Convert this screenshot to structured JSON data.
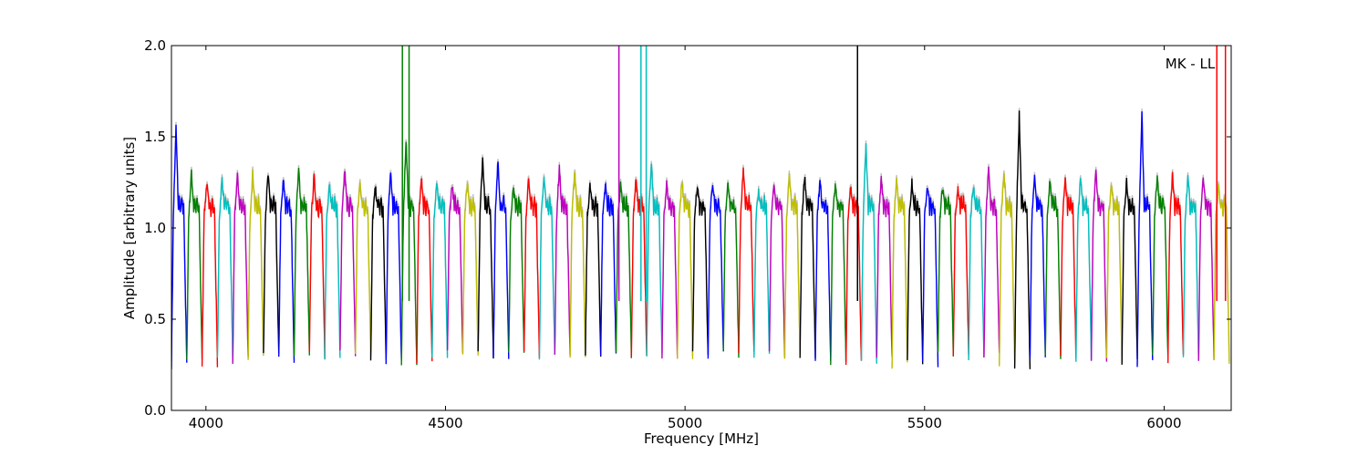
{
  "chart_data": {
    "type": "line",
    "title": "",
    "annotation": "MK - LL",
    "xlabel": "Frequency [MHz]",
    "ylabel": "Amplitude [arbitrary units]",
    "xlim": [
      3928,
      6140
    ],
    "ylim": [
      0.0,
      2.0
    ],
    "xticks": [
      4000,
      4500,
      5000,
      5500,
      6000
    ],
    "xtick_labels": [
      "4000",
      "4500",
      "5000",
      "5500",
      "6000"
    ],
    "yticks": [
      0.0,
      0.5,
      1.0,
      1.5,
      2.0
    ],
    "ytick_labels": [
      "0.0",
      "0.5",
      "1.0",
      "1.5",
      "2.0"
    ],
    "grid": false,
    "legend": "none",
    "background_series_color": "#bfbfbf",
    "color_cycle": [
      "#0000ff",
      "#008000",
      "#ff0000",
      "#00bfbf",
      "#bf00bf",
      "#bfbf00",
      "#000000"
    ],
    "band_width_mhz": 32,
    "band_count": 69,
    "band_start_mhz": 3928,
    "band_peaks": [
      1.55,
      1.3,
      1.24,
      1.27,
      1.29,
      1.3,
      1.29,
      1.26,
      1.32,
      1.28,
      1.25,
      1.32,
      1.25,
      1.22,
      1.3,
      1.49,
      1.27,
      1.26,
      1.24,
      1.25,
      1.39,
      1.37,
      1.22,
      1.28,
      1.27,
      1.33,
      1.31,
      1.23,
      1.24,
      1.23,
      1.26,
      1.36,
      1.24,
      1.25,
      1.24,
      1.25,
      1.26,
      1.32,
      1.2,
      1.23,
      1.28,
      1.29,
      1.25,
      1.23,
      1.23,
      1.46,
      1.27,
      1.26,
      1.26,
      1.24,
      1.23,
      1.22,
      1.23,
      1.33,
      1.3,
      1.63,
      1.27,
      1.26,
      1.26,
      1.27,
      1.32,
      1.24,
      1.25,
      1.63,
      1.28,
      1.3,
      1.28,
      1.28,
      1.23
    ],
    "band_dips": [
      0.25,
      0.26,
      0.26,
      0.27,
      0.27,
      0.3,
      0.29,
      0.28,
      0.29,
      0.3,
      0.3,
      0.31,
      0.3,
      0.27,
      0.25,
      0.24,
      0.25,
      0.28,
      0.31,
      0.3,
      0.3,
      0.29,
      0.3,
      0.3,
      0.3,
      0.3,
      0.28,
      0.3,
      0.3,
      0.31,
      0.29,
      0.29,
      0.3,
      0.3,
      0.3,
      0.3,
      0.31,
      0.31,
      0.3,
      0.3,
      0.3,
      0.29,
      0.26,
      0.27,
      0.25,
      0.27,
      0.28,
      0.25,
      0.26,
      0.25,
      0.3,
      0.31,
      0.29,
      0.3,
      0.25,
      0.24,
      0.27,
      0.28,
      0.28,
      0.29,
      0.27,
      0.28,
      0.27,
      0.26,
      0.28,
      0.28,
      0.27,
      0.28,
      0.27
    ],
    "spikes": [
      {
        "x": 4410,
        "color": "#008000"
      },
      {
        "x": 4424,
        "color": "#008000"
      },
      {
        "x": 4862,
        "color": "#bf00bf"
      },
      {
        "x": 4908,
        "color": "#00bfbf"
      },
      {
        "x": 4919,
        "color": "#00bfbf"
      },
      {
        "x": 5360,
        "color": "#000000"
      },
      {
        "x": 6110,
        "color": "#ff0000"
      },
      {
        "x": 6128,
        "color": "#ff0000"
      }
    ]
  }
}
